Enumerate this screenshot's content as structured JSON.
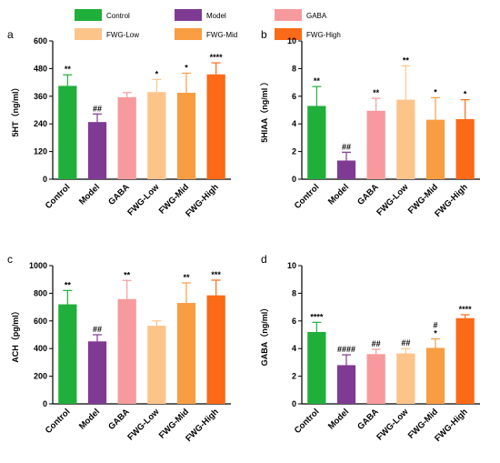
{
  "legend": [
    {
      "name": "Control",
      "color": "#1FAF3A"
    },
    {
      "name": "Model",
      "color": "#7F3A93"
    },
    {
      "name": "GABA",
      "color": "#F79A9D"
    },
    {
      "name": "FWG-Low",
      "color": "#FDC48A"
    },
    {
      "name": "FWG-Mid",
      "color": "#F99D43"
    },
    {
      "name": "FWG-High",
      "color": "#FB6A17"
    }
  ],
  "chart_data": [
    {
      "type": "bar",
      "panel": "a",
      "categories": [
        "Control",
        "Model",
        "GABA",
        "FWG-Low",
        "FWG-Mid",
        "FWG-High"
      ],
      "values": [
        405,
        248,
        356,
        378,
        375,
        455
      ],
      "errors": [
        48,
        35,
        20,
        55,
        85,
        50
      ],
      "significance": [
        "**",
        "##",
        "",
        "*",
        "*",
        "****"
      ],
      "ylabel": "5HT（ng/ml）",
      "ylim": [
        0,
        600
      ],
      "yticks": [
        0,
        120,
        240,
        360,
        480,
        600
      ]
    },
    {
      "type": "bar",
      "panel": "b",
      "categories": [
        "Control",
        "Model",
        "GABA",
        "FWG-Low",
        "FWG-Mid",
        "FWG-High"
      ],
      "values": [
        5.3,
        1.35,
        4.95,
        5.75,
        4.3,
        4.35
      ],
      "errors": [
        1.4,
        0.6,
        0.9,
        2.45,
        1.6,
        1.4
      ],
      "significance": [
        "**",
        "##",
        "**",
        "**",
        "*",
        "*"
      ],
      "ylabel": "5HIAA（ng/ml ）",
      "ylim": [
        0,
        10
      ],
      "yticks": [
        0,
        2,
        4,
        6,
        8,
        10
      ]
    },
    {
      "type": "bar",
      "panel": "c",
      "categories": [
        "Control",
        "Model",
        "GABA",
        "FWG-Low",
        "FWG-Mid",
        "FWG-High"
      ],
      "values": [
        720,
        452,
        758,
        565,
        730,
        785
      ],
      "errors": [
        100,
        48,
        135,
        35,
        145,
        110
      ],
      "significance": [
        "**",
        "##",
        "**",
        "",
        "**",
        "***"
      ],
      "ylabel": "ACH（pg/ml）",
      "ylim": [
        0,
        1000
      ],
      "yticks": [
        0,
        200,
        400,
        600,
        800,
        1000
      ]
    },
    {
      "type": "bar",
      "panel": "d",
      "categories": [
        "Control",
        "Model",
        "GABA",
        "FWG-Low",
        "FWG-Mid",
        "FWG-High"
      ],
      "values": [
        5.2,
        2.8,
        3.6,
        3.65,
        4.05,
        6.2
      ],
      "errors": [
        0.7,
        0.75,
        0.35,
        0.35,
        0.65,
        0.25
      ],
      "significance": [
        "****",
        "####",
        "##",
        "##",
        "#\n*",
        "****"
      ],
      "ylabel": "GABA（ng/ml）",
      "ylim": [
        0,
        10
      ],
      "yticks": [
        0,
        2,
        4,
        6,
        8,
        10
      ]
    }
  ]
}
